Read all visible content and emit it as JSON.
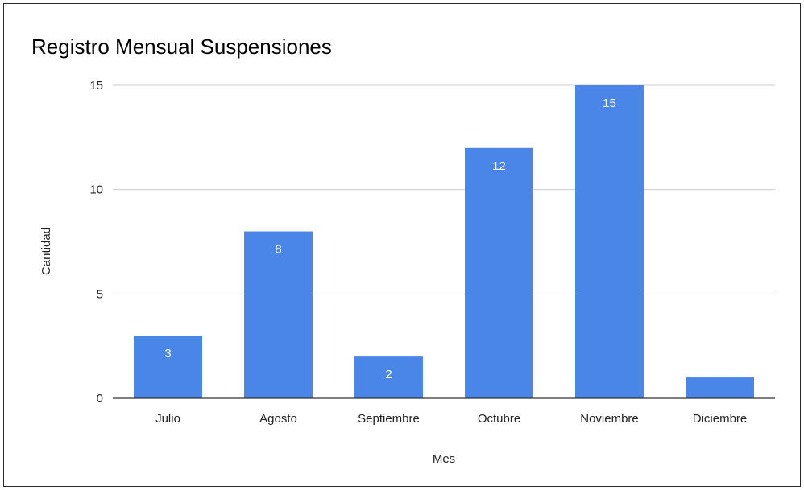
{
  "chart_data": {
    "type": "bar",
    "title": "Registro Mensual Suspensiones",
    "xlabel": "Mes",
    "ylabel": "Cantidad",
    "categories": [
      "Julio",
      "Agosto",
      "Septiembre",
      "Octubre",
      "Noviembre",
      "Diciembre"
    ],
    "values": [
      3,
      8,
      2,
      12,
      15,
      1
    ],
    "data_labels": [
      "3",
      "8",
      "2",
      "12",
      "15",
      ""
    ],
    "ylim": [
      0,
      15
    ],
    "yticks": [
      0,
      5,
      10,
      15
    ],
    "grid": true,
    "legend": "none",
    "bar_color": "#4a86e8",
    "grid_color": "#cccccc",
    "axis_color": "#333333"
  }
}
